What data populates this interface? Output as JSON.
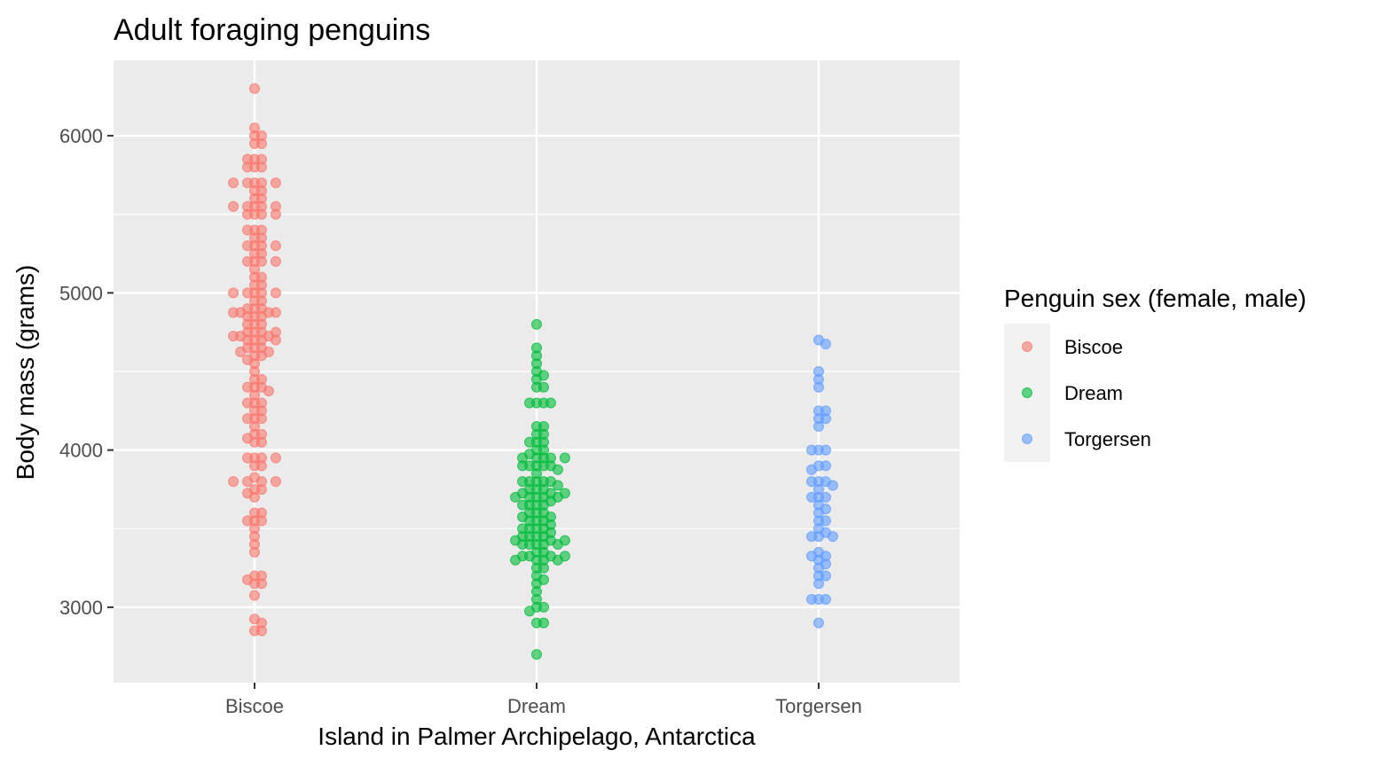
{
  "chart_data": {
    "type": "scatter",
    "title": "Adult foraging penguins",
    "xlabel": "Island in Palmer Archipelago, Antarctica",
    "ylabel": "Body mass (grams)",
    "categories": [
      "Biscoe",
      "Dream",
      "Torgersen"
    ],
    "ylim": [
      2520,
      6480
    ],
    "yticks": [
      3000,
      4000,
      5000,
      6000
    ],
    "grid": true,
    "legend": {
      "title": "Penguin sex (female, male)",
      "position": "right",
      "entries": [
        "Biscoe",
        "Dream",
        "Torgersen"
      ]
    },
    "colors": {
      "Biscoe": "#F8766D",
      "Dream": "#00BA38",
      "Torgersen": "#619CFF",
      "panel": "#EBEBEB",
      "grid": "#FFFFFF"
    },
    "series": [
      {
        "name": "Biscoe",
        "values": [
          6300,
          6050,
          6000,
          6000,
          5950,
          5950,
          5850,
          5850,
          5850,
          5800,
          5800,
          5800,
          5700,
          5700,
          5700,
          5700,
          5700,
          5650,
          5650,
          5600,
          5600,
          5550,
          5550,
          5550,
          5550,
          5550,
          5500,
          5500,
          5500,
          5500,
          5400,
          5400,
          5400,
          5350,
          5350,
          5300,
          5300,
          5300,
          5300,
          5250,
          5250,
          5200,
          5200,
          5200,
          5200,
          5150,
          5100,
          5100,
          5050,
          5050,
          5000,
          5000,
          5000,
          5000,
          5000,
          4950,
          4950,
          4900,
          4900,
          4900,
          4875,
          4875,
          4875,
          4875,
          4850,
          4850,
          4850,
          4800,
          4800,
          4800,
          4750,
          4750,
          4750,
          4750,
          4725,
          4725,
          4725,
          4700,
          4700,
          4700,
          4700,
          4650,
          4650,
          4650,
          4625,
          4625,
          4600,
          4600,
          4575,
          4550,
          4500,
          4450,
          4450,
          4400,
          4400,
          4400,
          4375,
          4350,
          4300,
          4300,
          4300,
          4250,
          4250,
          4200,
          4200,
          4200,
          4150,
          4100,
          4100,
          4075,
          4050,
          4050,
          3950,
          3950,
          3950,
          3950,
          3900,
          3900,
          3825,
          3800,
          3800,
          3800,
          3800,
          3750,
          3750,
          3725,
          3700,
          3600,
          3600,
          3550,
          3550,
          3550,
          3500,
          3450,
          3400,
          3350,
          3200,
          3200,
          3175,
          3150,
          3150,
          3075,
          2925,
          2900,
          2850,
          2850
        ]
      },
      {
        "name": "Dream",
        "values": [
          4800,
          4650,
          4600,
          4550,
          4500,
          4475,
          4450,
          4400,
          4400,
          4300,
          4300,
          4300,
          4300,
          4150,
          4150,
          4100,
          4100,
          4050,
          4050,
          4050,
          4000,
          4000,
          3975,
          3950,
          3950,
          3950,
          3950,
          3950,
          3900,
          3900,
          3900,
          3900,
          3900,
          3875,
          3850,
          3800,
          3800,
          3800,
          3800,
          3800,
          3775,
          3750,
          3750,
          3750,
          3725,
          3725,
          3725,
          3700,
          3700,
          3700,
          3700,
          3700,
          3675,
          3650,
          3650,
          3650,
          3650,
          3600,
          3600,
          3600,
          3575,
          3575,
          3550,
          3550,
          3550,
          3525,
          3500,
          3500,
          3500,
          3500,
          3475,
          3450,
          3450,
          3450,
          3450,
          3425,
          3425,
          3425,
          3400,
          3400,
          3400,
          3400,
          3400,
          3350,
          3350,
          3325,
          3325,
          3325,
          3325,
          3300,
          3300,
          3300,
          3300,
          3250,
          3250,
          3200,
          3175,
          3150,
          3100,
          3050,
          3000,
          3000,
          2975,
          2900,
          2900,
          2700
        ]
      },
      {
        "name": "Torgersen",
        "values": [
          4700,
          4675,
          4500,
          4450,
          4400,
          4250,
          4250,
          4200,
          4200,
          4150,
          4000,
          4000,
          4000,
          3900,
          3900,
          3875,
          3800,
          3800,
          3800,
          3775,
          3750,
          3700,
          3700,
          3700,
          3650,
          3625,
          3600,
          3550,
          3550,
          3500,
          3475,
          3450,
          3450,
          3450,
          3350,
          3325,
          3325,
          3300,
          3275,
          3250,
          3200,
          3200,
          3150,
          3050,
          3050,
          3050,
          2900
        ]
      }
    ]
  }
}
